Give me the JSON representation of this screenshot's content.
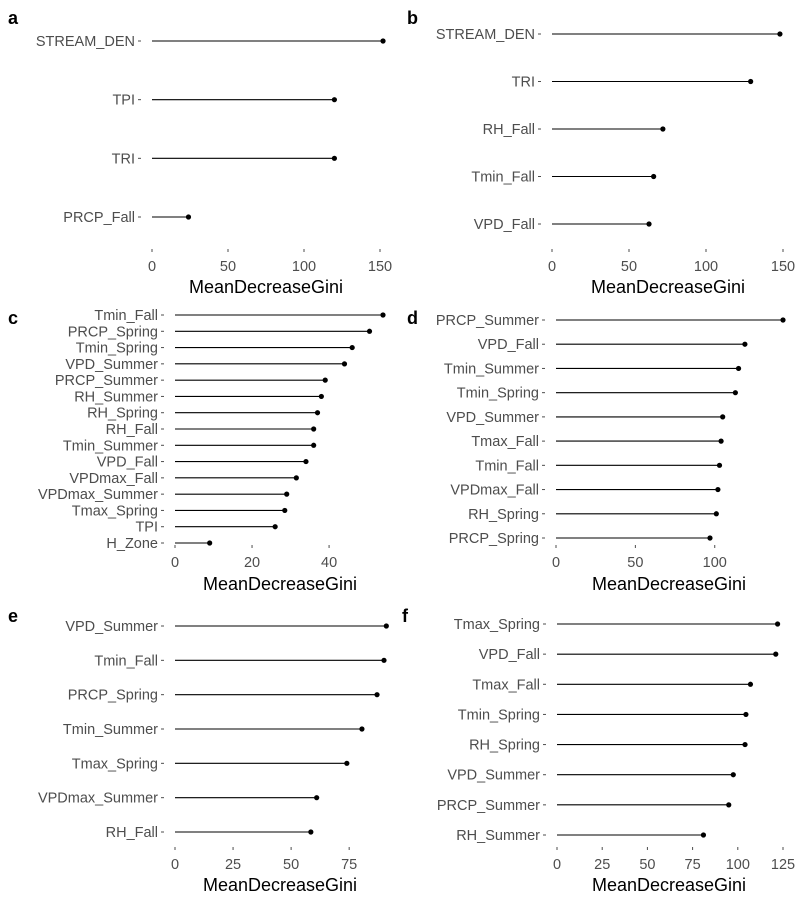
{
  "figure": {
    "colors": {
      "segment": "#000000",
      "point": "#000000",
      "label": "#4d4d4d",
      "tick": "#4d4d4d"
    }
  },
  "chart_data": [
    {
      "panel": "a",
      "type": "lollipop",
      "orientation": "horizontal",
      "xlabel": "MeanDecreaseGini",
      "xlim": [
        0,
        150
      ],
      "xticks": [
        0,
        50,
        100,
        150
      ],
      "categories": [
        "STREAM_DEN",
        "TPI",
        "TRI",
        "PRCP_Fall"
      ],
      "values": [
        152,
        120,
        120,
        24
      ],
      "grid": false
    },
    {
      "panel": "b",
      "type": "lollipop",
      "orientation": "horizontal",
      "xlabel": "MeanDecreaseGini",
      "xlim": [
        0,
        150
      ],
      "xticks": [
        0,
        50,
        100,
        150
      ],
      "categories": [
        "STREAM_DEN",
        "TRI",
        "RH_Fall",
        "Tmin_Fall",
        "VPD_Fall"
      ],
      "values": [
        148,
        129,
        72,
        66,
        63
      ],
      "grid": false
    },
    {
      "panel": "c",
      "type": "lollipop",
      "orientation": "horizontal",
      "xlabel": "MeanDecreaseGini",
      "xlim": [
        0,
        54
      ],
      "xticks": [
        0,
        20,
        40
      ],
      "categories": [
        "Tmin_Fall",
        "PRCP_Spring",
        "Tmin_Spring",
        "VPD_Summer",
        "PRCP_Summer",
        "RH_Summer",
        "RH_Spring",
        "RH_Fall",
        "Tmin_Summer",
        "VPD_Fall",
        "VPDmax_Fall",
        "VPDmax_Summer",
        "Tmax_Spring",
        "TPI",
        "H_Zone"
      ],
      "values": [
        54,
        50.5,
        46,
        44,
        39,
        38,
        37,
        36,
        36,
        34,
        31.5,
        29,
        28.5,
        26,
        9
      ],
      "grid": false
    },
    {
      "panel": "d",
      "type": "lollipop",
      "orientation": "horizontal",
      "xlabel": "MeanDecreaseGini",
      "xlim": [
        0,
        143
      ],
      "xticks": [
        0,
        50,
        100
      ],
      "categories": [
        "PRCP_Summer",
        "VPD_Fall",
        "Tmin_Summer",
        "Tmin_Spring",
        "VPD_Summer",
        "Tmax_Fall",
        "Tmin_Fall",
        "VPDmax_Fall",
        "RH_Spring",
        "PRCP_Spring"
      ],
      "values": [
        143,
        119,
        115,
        113,
        105,
        104,
        103,
        102,
        101,
        97
      ],
      "grid": false
    },
    {
      "panel": "e",
      "type": "lollipop",
      "orientation": "horizontal",
      "xlabel": "MeanDecreaseGini",
      "xlim": [
        0,
        90
      ],
      "xticks": [
        0,
        25,
        50,
        75
      ],
      "categories": [
        "VPD_Summer",
        "Tmin_Fall",
        "PRCP_Spring",
        "Tmin_Summer",
        "Tmax_Spring",
        "VPDmax_Summer",
        "RH_Fall"
      ],
      "values": [
        91,
        90,
        87,
        80.5,
        74,
        61,
        58.5
      ],
      "grid": false
    },
    {
      "panel": "f",
      "type": "lollipop",
      "orientation": "horizontal",
      "xlabel": "MeanDecreaseGini",
      "xlim": [
        0,
        125
      ],
      "xticks": [
        0,
        25,
        50,
        75,
        100,
        125
      ],
      "categories": [
        "Tmax_Spring",
        "VPD_Fall",
        "Tmax_Fall",
        "Tmin_Spring",
        "RH_Spring",
        "VPD_Summer",
        "PRCP_Summer",
        "RH_Summer"
      ],
      "values": [
        122,
        121,
        107,
        104.5,
        104,
        97.5,
        95,
        81
      ],
      "grid": false
    }
  ]
}
